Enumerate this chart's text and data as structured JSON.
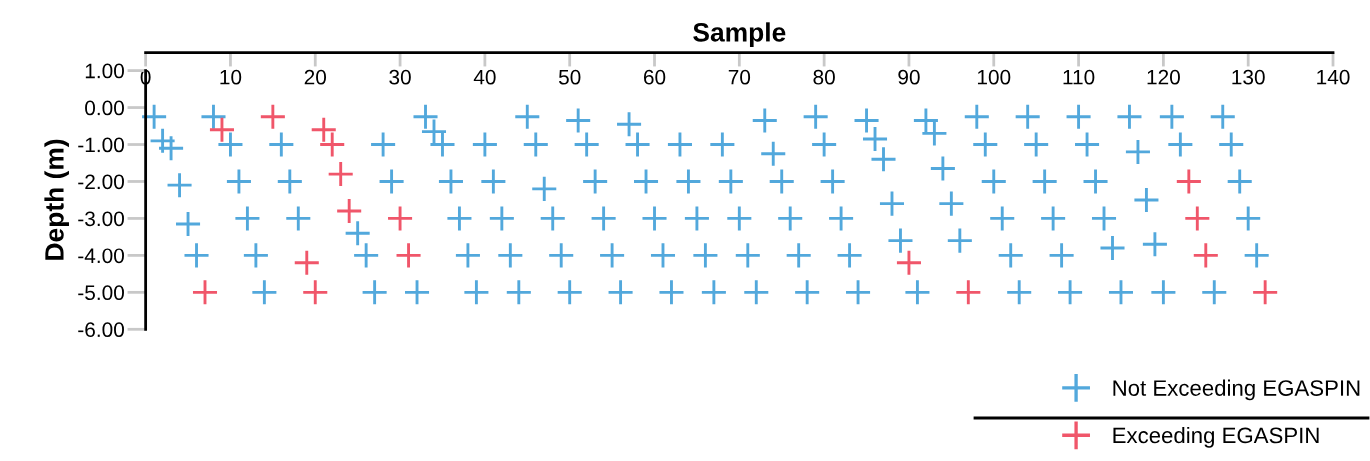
{
  "chart_data": {
    "type": "scatter",
    "xlabel": "Sample",
    "ylabel": "Depth (m)",
    "xlim": [
      0,
      140
    ],
    "xticks": [
      0,
      10,
      20,
      30,
      40,
      50,
      60,
      70,
      80,
      90,
      100,
      110,
      120,
      130,
      140
    ],
    "ylim": [
      -6,
      1
    ],
    "yticks": [
      {
        "value": 1,
        "label": "1.00"
      },
      {
        "value": 0,
        "label": "0.00"
      },
      {
        "value": -1,
        "label": "-1.00"
      },
      {
        "value": -2,
        "label": "-2.00"
      },
      {
        "value": -3,
        "label": "-3.00"
      },
      {
        "value": -4,
        "label": "-4.00"
      },
      {
        "value": -5,
        "label": "-5.00"
      },
      {
        "value": -6,
        "label": "-6.00"
      }
    ],
    "grid": false,
    "legend": "bottom right",
    "marker": "cross",
    "series": [
      {
        "name": "Not Exceeding EGASPIN",
        "color": "#52a8dc",
        "x": [
          1,
          2,
          3,
          4,
          5,
          6,
          8,
          10,
          11,
          12,
          13,
          14,
          16,
          17,
          18,
          25,
          26,
          27,
          28,
          29,
          32,
          33,
          34,
          35,
          36,
          37,
          38,
          39,
          40,
          41,
          42,
          43,
          44,
          45,
          46,
          47,
          48,
          49,
          50,
          51,
          52,
          53,
          54,
          55,
          56,
          57,
          58,
          59,
          60,
          61,
          62,
          63,
          64,
          65,
          66,
          67,
          68,
          69,
          70,
          71,
          72,
          73,
          74,
          75,
          76,
          77,
          78,
          79,
          80,
          81,
          82,
          83,
          84,
          85,
          86,
          87,
          88,
          89,
          91,
          92,
          93,
          94,
          95,
          96,
          98,
          99,
          100,
          101,
          102,
          103,
          104,
          105,
          106,
          107,
          108,
          109,
          110,
          111,
          112,
          113,
          114,
          115,
          116,
          117,
          118,
          119,
          120,
          121,
          122,
          126,
          127,
          128,
          129,
          130,
          131
        ],
        "values": [
          -0.25,
          -0.9,
          -1.1,
          -2.1,
          -3.15,
          -4.0,
          -0.25,
          -1.0,
          -2.0,
          -3.0,
          -4.0,
          -5.0,
          -1.0,
          -2.0,
          -3.0,
          -3.4,
          -4.0,
          -5.0,
          -1.0,
          -2.0,
          -5.0,
          -0.25,
          -0.65,
          -1.0,
          -2.0,
          -3.0,
          -4.0,
          -5.0,
          -1.0,
          -2.0,
          -3.0,
          -4.0,
          -5.0,
          -0.25,
          -1.0,
          -2.2,
          -3.0,
          -4.0,
          -5.0,
          -0.35,
          -1.0,
          -2.0,
          -3.0,
          -4.0,
          -5.0,
          -0.45,
          -1.0,
          -2.0,
          -3.0,
          -4.0,
          -5.0,
          -1.0,
          -2.0,
          -3.0,
          -4.0,
          -5.0,
          -1.0,
          -2.0,
          -3.0,
          -4.0,
          -5.0,
          -0.35,
          -1.25,
          -2.0,
          -3.0,
          -4.0,
          -5.0,
          -0.25,
          -1.0,
          -2.0,
          -3.0,
          -4.0,
          -5.0,
          -0.35,
          -0.85,
          -1.4,
          -2.6,
          -3.6,
          -5.0,
          -0.35,
          -0.7,
          -1.65,
          -2.6,
          -3.6,
          -0.25,
          -1.0,
          -2.0,
          -3.0,
          -4.0,
          -5.0,
          -0.25,
          -1.0,
          -2.0,
          -3.0,
          -4.0,
          -5.0,
          -0.25,
          -1.0,
          -2.0,
          -3.0,
          -3.8,
          -5.0,
          -0.25,
          -1.2,
          -2.5,
          -3.7,
          -5.0,
          -0.25,
          -1.0,
          -5.0,
          -0.25,
          -1.0,
          -2.0,
          -3.0,
          -4.0
        ]
      },
      {
        "name": "Exceeding EGASPIN",
        "color": "#f0566a",
        "x": [
          7,
          9,
          15,
          19,
          20,
          21,
          22,
          23,
          24,
          30,
          31,
          90,
          97,
          123,
          124,
          125,
          132
        ],
        "values": [
          -5.0,
          -0.6,
          -0.25,
          -4.2,
          -5.0,
          -0.6,
          -1.0,
          -1.8,
          -2.8,
          -3.0,
          -4.0,
          -4.2,
          -5.0,
          -2.0,
          -3.0,
          -4.0,
          -5.0
        ]
      }
    ]
  }
}
